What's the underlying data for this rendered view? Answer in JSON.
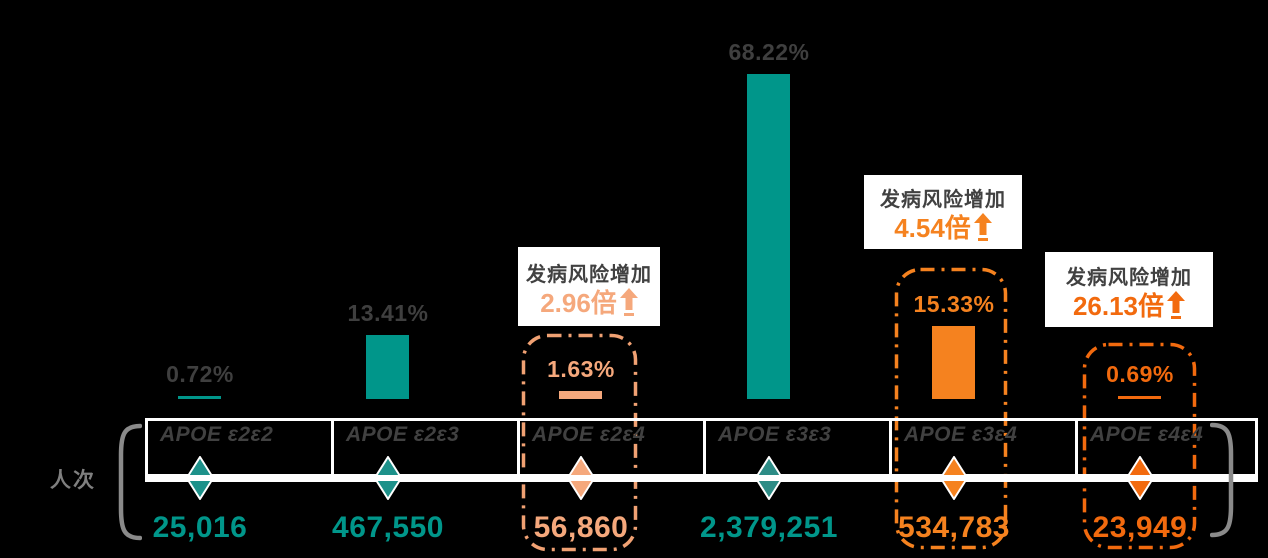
{
  "chart_data": {
    "type": "bar",
    "title": "",
    "unit_label": "人次",
    "categories": [
      "APOE ε2ε2",
      "APOE ε2ε3",
      "APOE ε2ε4",
      "APOE ε3ε3",
      "APOE ε3ε4",
      "APOE ε4ε4"
    ],
    "values": [
      0.72,
      13.41,
      1.63,
      68.22,
      15.33,
      0.69
    ],
    "percent_labels": [
      "0.72%",
      "13.41%",
      "1.63%",
      "68.22%",
      "15.33%",
      "0.69%"
    ],
    "counts": [
      25016,
      467550,
      56860,
      2379251,
      534783,
      23949
    ],
    "count_labels": [
      "25,016",
      "467,550",
      "56,860",
      "2,379,251",
      "534,783",
      "23,949"
    ],
    "ylim": [
      0,
      70
    ],
    "grid": false,
    "legend": "none",
    "highlighted_categories": [
      "APOE ε2ε4",
      "APOE ε3ε4",
      "APOE ε4ε4"
    ],
    "risk_callouts": [
      {
        "category": "APOE ε2ε4",
        "text": "发病风险增加",
        "multiplier": 2.96,
        "value_label": "2.96倍"
      },
      {
        "category": "APOE ε3ε4",
        "text": "发病风险增加",
        "multiplier": 4.54,
        "value_label": "4.54倍"
      },
      {
        "category": "APOE ε4ε4",
        "text": "发病风险增加",
        "multiplier": 26.13,
        "value_label": "26.13倍"
      }
    ],
    "colors": {
      "teal": "#00968a",
      "peach": "#f5a87c",
      "orange": "#f5821f",
      "orange_deep": "#f26a0e",
      "dark_text": "#3f3f3f",
      "gray_text": "#7f7f7f",
      "band": "#ffffff",
      "background": "#000000"
    }
  }
}
